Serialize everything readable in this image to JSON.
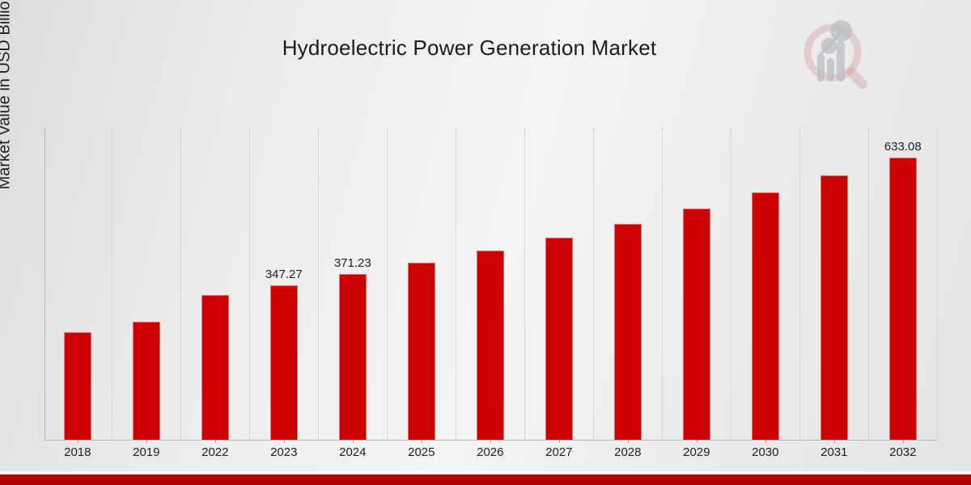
{
  "page": {
    "title": "Hydroelectric Power Generation Market",
    "ylabel": "Market Value in USD Billion",
    "background_color": "#ebebeb",
    "footer_accent_top": "#c10303",
    "footer_accent_bottom": "#a50202"
  },
  "chart_data": {
    "type": "bar",
    "title": "Hydroelectric Power Generation Market",
    "xlabel": "",
    "ylabel": "Market Value in USD Billion",
    "categories": [
      "2018",
      "2019",
      "2022",
      "2023",
      "2024",
      "2025",
      "2026",
      "2027",
      "2028",
      "2029",
      "2030",
      "2031",
      "2032"
    ],
    "values": [
      242.0,
      264.9,
      324.9,
      347.27,
      371.23,
      396.9,
      424.3,
      453.6,
      484.9,
      518.4,
      554.2,
      592.5,
      633.08
    ],
    "value_labels": {
      "2023": "347.27",
      "2024": "371.23",
      "2032": "633.08"
    },
    "bar_color": "#cc0101",
    "ylim": [
      0,
      702
    ],
    "grid": "vertical-dotted-between-categories",
    "legend": "none",
    "yticks": "none"
  },
  "logo": {
    "name": "market-research-magnifier-chart-logo",
    "ring_color": "#cf8b93",
    "glyph_color": "#b9bcc1"
  }
}
